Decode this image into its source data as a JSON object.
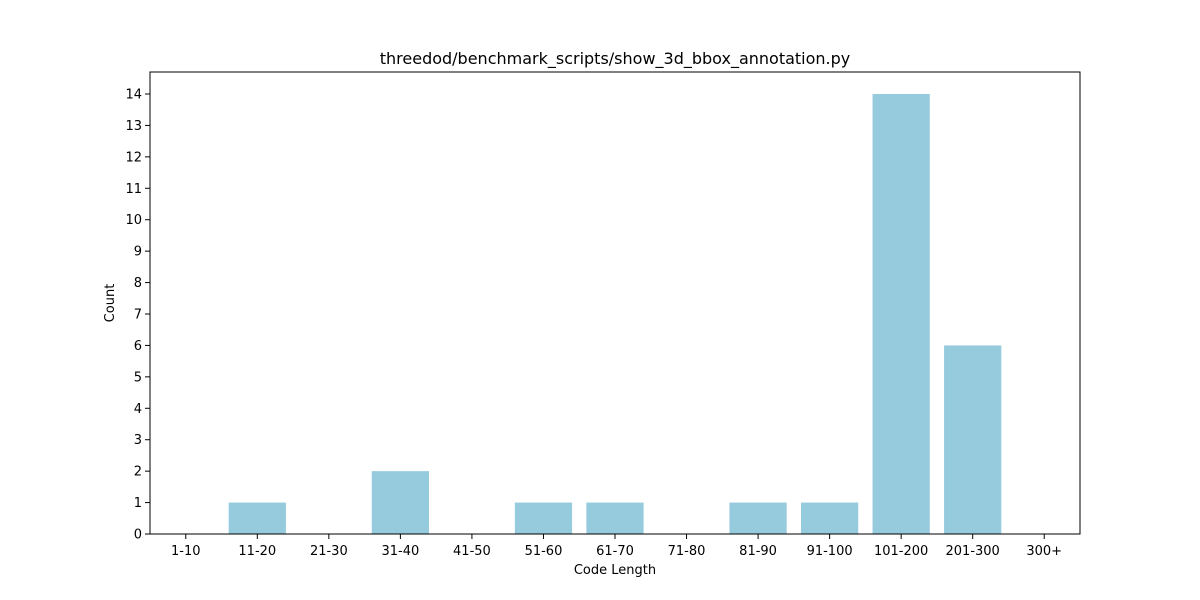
{
  "chart_data": {
    "type": "bar",
    "title": "threedod/benchmark_scripts/show_3d_bbox_annotation.py",
    "xlabel": "Code Length",
    "ylabel": "Count",
    "categories": [
      "1-10",
      "11-20",
      "21-30",
      "31-40",
      "41-50",
      "51-60",
      "61-70",
      "71-80",
      "81-90",
      "91-100",
      "101-200",
      "201-300",
      "300+"
    ],
    "values": [
      0,
      1,
      0,
      2,
      0,
      1,
      1,
      0,
      1,
      1,
      14,
      6,
      0
    ],
    "ylim": [
      0,
      14.7
    ],
    "yticks": [
      0,
      1,
      2,
      3,
      4,
      5,
      6,
      7,
      8,
      9,
      10,
      11,
      12,
      13,
      14
    ],
    "bar_color": "#96cadd",
    "grid": false,
    "legend": "none"
  }
}
